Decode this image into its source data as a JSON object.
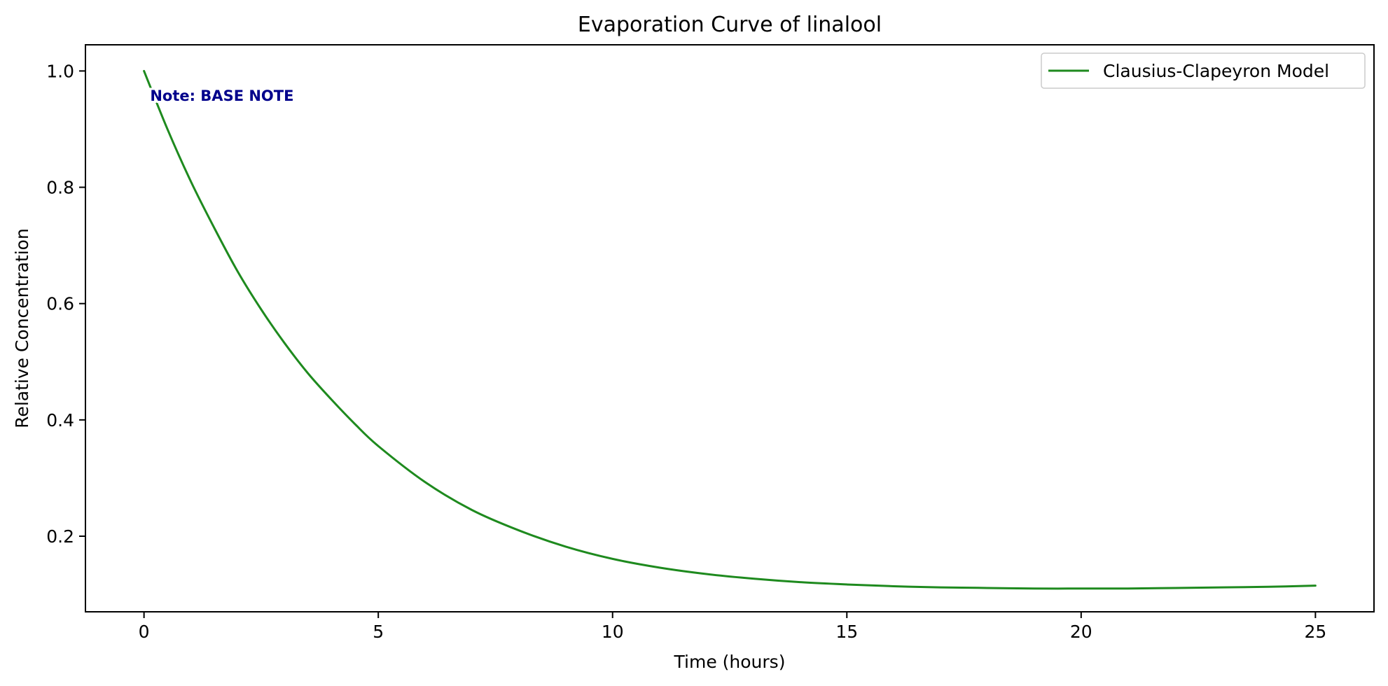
{
  "colors": {
    "series": "#1e8a1e",
    "note": "#00008b",
    "axis": "#000000",
    "background": "#ffffff"
  },
  "chart_data": {
    "type": "line",
    "title": "Evaporation Curve of linalool",
    "xlabel": "Time (hours)",
    "ylabel": "Relative Concentration",
    "xlim": [
      -1.25,
      26.25
    ],
    "ylim": [
      0.07,
      1.045
    ],
    "xticks": [
      0,
      5,
      10,
      15,
      20,
      25
    ],
    "yticks": [
      0.2,
      0.4,
      0.6,
      0.8,
      1.0
    ],
    "xtick_labels": [
      "0",
      "5",
      "10",
      "15",
      "20",
      "25"
    ],
    "ytick_labels": [
      "0.2",
      "0.4",
      "0.6",
      "0.8",
      "1.0"
    ],
    "legend_position": "top-right",
    "grid": false,
    "annotation": {
      "text": "Note: BASE NOTE",
      "x": 0.1,
      "y": 0.955
    },
    "series": [
      {
        "name": "Clausius-Clapeyron Model",
        "x": [
          0,
          0.5,
          1,
          1.5,
          2,
          2.5,
          3,
          3.5,
          4,
          4.5,
          5,
          6,
          7,
          8,
          9,
          10,
          11,
          12,
          13,
          14,
          15,
          16,
          17,
          18,
          19,
          20,
          21,
          22,
          23,
          24,
          25
        ],
        "y": [
          1.0,
          0.9,
          0.81,
          0.73,
          0.655,
          0.59,
          0.532,
          0.48,
          0.435,
          0.393,
          0.355,
          0.293,
          0.245,
          0.21,
          0.182,
          0.161,
          0.146,
          0.135,
          0.127,
          0.121,
          0.117,
          0.114,
          0.112,
          0.111,
          0.11,
          0.11,
          0.11,
          0.111,
          0.112,
          0.113,
          0.115
        ]
      }
    ]
  }
}
